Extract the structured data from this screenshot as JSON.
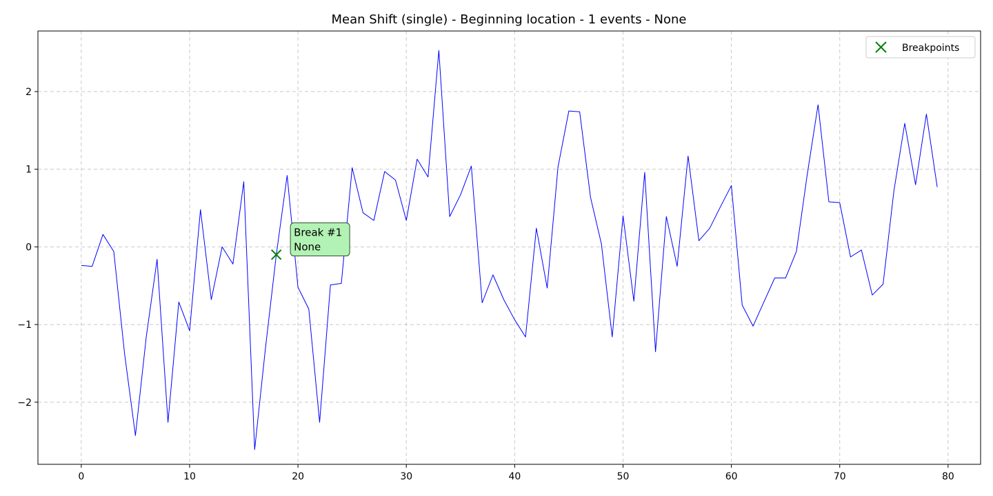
{
  "chart_data": {
    "type": "line",
    "title": "Mean Shift (single) - Beginning location - 1 events - None",
    "xlabel": "",
    "ylabel": "",
    "xlim": [
      -4,
      83
    ],
    "ylim": [
      -2.8,
      2.78
    ],
    "xticks": [
      0,
      10,
      20,
      30,
      40,
      50,
      60,
      70,
      80
    ],
    "yticks": [
      -2,
      -1,
      0,
      1,
      2
    ],
    "grid": true,
    "legend_position": "top-right",
    "series": [
      {
        "color": "#0000ff",
        "x": [
          0,
          1,
          2,
          3,
          4,
          5,
          6,
          7,
          8,
          9,
          10,
          11,
          12,
          13,
          14,
          15,
          16,
          17,
          18,
          19,
          20,
          21,
          22,
          23,
          24,
          25,
          26,
          27,
          28,
          29,
          30,
          31,
          32,
          33,
          34,
          35,
          36,
          37,
          38,
          39,
          40,
          41,
          42,
          43,
          44,
          45,
          46,
          47,
          48,
          49,
          50,
          51,
          52,
          53,
          54,
          55,
          56,
          57,
          58,
          59,
          60,
          61,
          62,
          63,
          64,
          65,
          66,
          67,
          68,
          69,
          70,
          71,
          72,
          73,
          74,
          75,
          76,
          77,
          78,
          79
        ],
        "y": [
          -0.24,
          -0.25,
          0.16,
          -0.06,
          -1.38,
          -2.43,
          -1.16,
          -0.16,
          -2.26,
          -0.71,
          -1.08,
          0.48,
          -0.68,
          0.0,
          -0.22,
          0.84,
          -2.61,
          -1.3,
          -0.1,
          0.92,
          -0.52,
          -0.8,
          -2.26,
          -0.49,
          -0.47,
          1.02,
          0.44,
          0.34,
          0.97,
          0.86,
          0.34,
          1.13,
          0.9,
          2.53,
          0.39,
          0.67,
          1.04,
          -0.72,
          -0.36,
          -0.68,
          -0.94,
          -1.16,
          0.24,
          -0.53,
          1.03,
          1.75,
          1.74,
          0.64,
          0.04,
          -1.16,
          0.4,
          -0.7,
          0.96,
          -1.35,
          0.39,
          -0.25,
          1.17,
          0.08,
          0.24,
          0.52,
          0.79,
          -0.75,
          -1.02,
          -0.71,
          -0.4,
          -0.4,
          -0.06,
          0.93,
          1.83,
          0.58,
          0.57,
          -0.13,
          -0.04,
          -0.62,
          -0.48,
          0.72,
          1.59,
          0.8,
          1.71,
          0.77
        ]
      }
    ],
    "breakpoints": {
      "name": "Breakpoints",
      "color": "#008000",
      "x": [
        18
      ],
      "y": [
        -0.1
      ]
    },
    "annotations": [
      {
        "line1": "Break #1",
        "line2": "None",
        "x": 19.3,
        "y": 0.3,
        "background": "#b2f2b4"
      }
    ]
  }
}
